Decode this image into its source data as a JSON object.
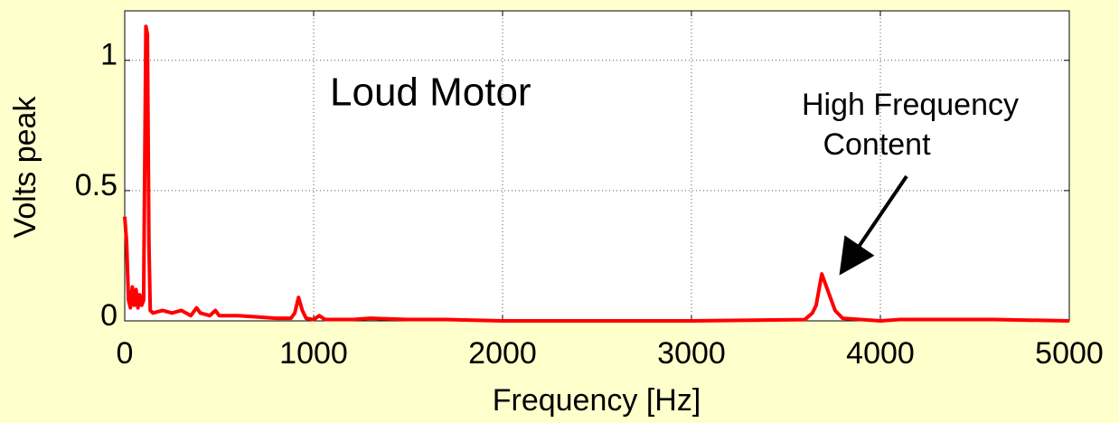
{
  "chart_data": {
    "type": "line",
    "xlabel": "Frequency [Hz]",
    "ylabel": "Volts peak",
    "annotations": [
      "Loud Motor",
      "High Frequency",
      "Content"
    ],
    "x": [
      0,
      10,
      20,
      30,
      40,
      50,
      60,
      70,
      80,
      90,
      100,
      112,
      120,
      128,
      135,
      150,
      200,
      250,
      300,
      350,
      380,
      400,
      450,
      480,
      500,
      600,
      700,
      800,
      880,
      900,
      920,
      940,
      960,
      1000,
      1030,
      1060,
      1200,
      1300,
      1500,
      1700,
      2000,
      3000,
      3600,
      3640,
      3660,
      3690,
      3710,
      3730,
      3760,
      3800,
      3900,
      4000,
      4100,
      4300,
      4600,
      5000
    ],
    "values": [
      0.4,
      0.3,
      0.08,
      0.05,
      0.13,
      0.06,
      0.12,
      0.05,
      0.1,
      0.06,
      0.08,
      1.13,
      1.1,
      0.3,
      0.04,
      0.03,
      0.04,
      0.03,
      0.04,
      0.02,
      0.05,
      0.03,
      0.02,
      0.04,
      0.02,
      0.02,
      0.015,
      0.01,
      0.01,
      0.03,
      0.09,
      0.04,
      0.01,
      0.005,
      0.02,
      0.005,
      0.005,
      0.01,
      0.005,
      0.005,
      0,
      0,
      0.005,
      0.03,
      0.06,
      0.18,
      0.14,
      0.1,
      0.04,
      0.01,
      0.005,
      0,
      0.005,
      0.005,
      0.005,
      0
    ],
    "color": "#ff0000",
    "xlim": [
      0,
      5000
    ],
    "xticks": [
      0,
      1000,
      2000,
      3000,
      4000,
      5000
    ],
    "ylim": [
      0,
      1.19
    ],
    "yticks": [
      0,
      0.5,
      1
    ],
    "grid": true
  }
}
